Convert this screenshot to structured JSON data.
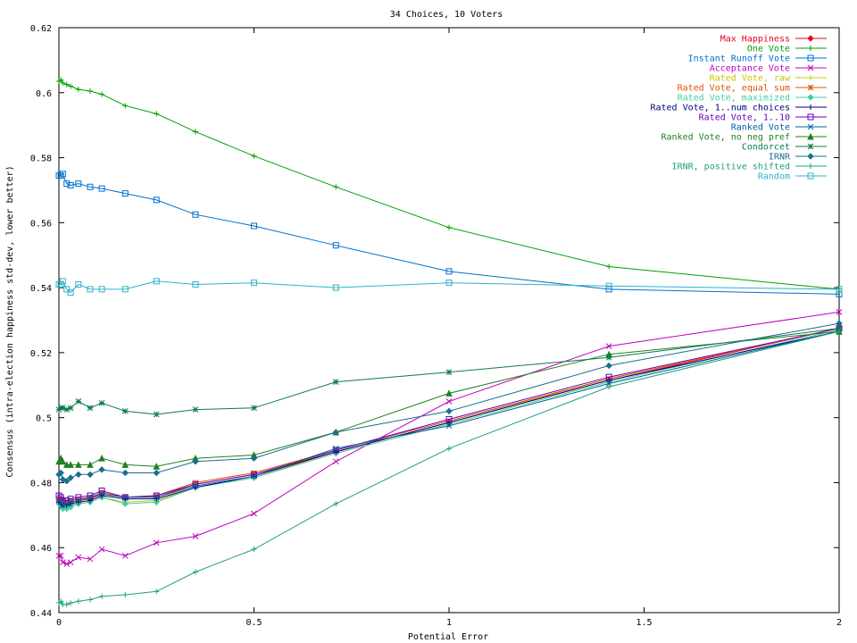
{
  "chart_data": {
    "type": "line",
    "title": "34 Choices, 10 Voters",
    "xlabel": "Potential Error",
    "ylabel": "Consensus (intra-election happiness std-dev, lower better)",
    "xlim": [
      0,
      2
    ],
    "ylim": [
      0.44,
      0.62
    ],
    "xticks": [
      0,
      0.5,
      1,
      1.5,
      2
    ],
    "xtick_labels": [
      "0",
      "0.5",
      "1",
      "1.5",
      "2"
    ],
    "yticks": [
      0.44,
      0.46,
      0.48,
      0.5,
      0.52,
      0.54,
      0.56,
      0.58,
      0.6,
      0.62
    ],
    "ytick_labels": [
      "0.44",
      "0.46",
      "0.48",
      "0.5",
      "0.52",
      "0.54",
      "0.56",
      "0.58",
      "0.6",
      "0.62"
    ],
    "grid": false,
    "legend_position": "top-right",
    "x": [
      0,
      0.005,
      0.01,
      0.02,
      0.03,
      0.05,
      0.08,
      0.11,
      0.17,
      0.25,
      0.35,
      0.5,
      0.71,
      1.0,
      1.41,
      2.0
    ],
    "series": [
      {
        "name": "Max Happiness",
        "color": "#e8001c",
        "marker": "diamond",
        "values": [
          0.4745,
          0.4745,
          0.4735,
          0.4735,
          0.474,
          0.4745,
          0.475,
          0.4765,
          0.4755,
          0.4755,
          0.4795,
          0.4825,
          0.4895,
          0.4985,
          0.5115,
          0.5275
        ]
      },
      {
        "name": "One Vote",
        "color": "#00a000",
        "marker": "plus",
        "values": [
          0.6035,
          0.604,
          0.603,
          0.6025,
          0.602,
          0.601,
          0.6005,
          0.5995,
          0.596,
          0.5935,
          0.588,
          0.5805,
          0.571,
          0.5585,
          0.5465,
          0.5395
        ]
      },
      {
        "name": "Instant Runoff Vote",
        "color": "#0070d0",
        "marker": "square",
        "values": [
          0.5745,
          0.5745,
          0.575,
          0.572,
          0.5715,
          0.572,
          0.571,
          0.5705,
          0.569,
          0.567,
          0.5625,
          0.559,
          0.553,
          0.545,
          0.5395,
          0.538
        ]
      },
      {
        "name": "Acceptance Vote",
        "color": "#c000c0",
        "marker": "x",
        "values": [
          0.4575,
          0.4575,
          0.4555,
          0.455,
          0.4555,
          0.457,
          0.4565,
          0.4595,
          0.4575,
          0.4615,
          0.4635,
          0.4705,
          0.4865,
          0.505,
          0.522,
          0.5325
        ]
      },
      {
        "name": "Rated Vote, raw",
        "color": "#c8c800",
        "marker": "plus",
        "values": [
          0.4735,
          0.473,
          0.4725,
          0.4725,
          0.473,
          0.4735,
          0.474,
          0.4755,
          0.474,
          0.4745,
          0.4785,
          0.4815,
          0.4895,
          0.4985,
          0.512,
          0.5275
        ]
      },
      {
        "name": "Rated Vote, equal sum",
        "color": "#e05000",
        "marker": "star",
        "values": [
          0.475,
          0.475,
          0.4745,
          0.474,
          0.4745,
          0.475,
          0.4755,
          0.477,
          0.4755,
          0.476,
          0.48,
          0.483,
          0.49,
          0.499,
          0.512,
          0.5275
        ]
      },
      {
        "name": "Rated Vote, maximized",
        "color": "#40d0a0",
        "marker": "diamond",
        "values": [
          0.4735,
          0.473,
          0.472,
          0.472,
          0.4725,
          0.4735,
          0.474,
          0.4755,
          0.4735,
          0.474,
          0.4785,
          0.4815,
          0.489,
          0.498,
          0.511,
          0.527
        ]
      },
      {
        "name": "Rated Vote, 1..num choices",
        "color": "#000080",
        "marker": "plus",
        "values": [
          0.474,
          0.4735,
          0.473,
          0.473,
          0.4735,
          0.474,
          0.4745,
          0.476,
          0.475,
          0.475,
          0.4785,
          0.482,
          0.4895,
          0.4985,
          0.5115,
          0.5265
        ]
      },
      {
        "name": "Rated Vote, 1..10",
        "color": "#6a00c0",
        "marker": "square",
        "values": [
          0.476,
          0.4755,
          0.4745,
          0.4745,
          0.475,
          0.4755,
          0.476,
          0.4775,
          0.4755,
          0.476,
          0.4795,
          0.4825,
          0.49,
          0.4995,
          0.5125,
          0.5275
        ]
      },
      {
        "name": "Ranked Vote",
        "color": "#0060a0",
        "marker": "x",
        "values": [
          0.4745,
          0.474,
          0.473,
          0.4735,
          0.474,
          0.4745,
          0.4755,
          0.4765,
          0.4755,
          0.4755,
          0.479,
          0.482,
          0.4905,
          0.4975,
          0.5105,
          0.5265
        ]
      },
      {
        "name": "Ranked Vote, no neg pref",
        "color": "#208020",
        "marker": "triangle",
        "values": [
          0.4865,
          0.4875,
          0.4865,
          0.4855,
          0.4855,
          0.4855,
          0.4855,
          0.4875,
          0.4855,
          0.485,
          0.4875,
          0.4885,
          0.4955,
          0.5075,
          0.5195,
          0.5265
        ]
      },
      {
        "name": "Condorcet",
        "color": "#0c7a4a",
        "marker": "star",
        "values": [
          0.5025,
          0.503,
          0.503,
          0.5025,
          0.503,
          0.505,
          0.503,
          0.5045,
          0.502,
          0.501,
          0.5025,
          0.503,
          0.511,
          0.514,
          0.5185,
          0.5275
        ]
      },
      {
        "name": "IRNR",
        "color": "#1a6e8e",
        "marker": "diamond",
        "values": [
          0.4825,
          0.483,
          0.481,
          0.4805,
          0.4815,
          0.4825,
          0.4825,
          0.484,
          0.483,
          0.483,
          0.4865,
          0.4875,
          0.4955,
          0.502,
          0.516,
          0.529
        ]
      },
      {
        "name": "IRNR, positive shifted",
        "color": "#20a080",
        "marker": "plus",
        "values": [
          0.443,
          0.4435,
          0.4425,
          0.4425,
          0.443,
          0.4435,
          0.444,
          0.445,
          0.4455,
          0.4465,
          0.4525,
          0.4595,
          0.4735,
          0.4905,
          0.5095,
          0.5265
        ]
      },
      {
        "name": "Random",
        "color": "#30b0c8",
        "marker": "square",
        "values": [
          0.541,
          0.541,
          0.542,
          0.5395,
          0.5385,
          0.541,
          0.5395,
          0.5395,
          0.5395,
          0.542,
          0.541,
          0.5415,
          0.54,
          0.5415,
          0.5405,
          0.5395
        ]
      }
    ]
  }
}
